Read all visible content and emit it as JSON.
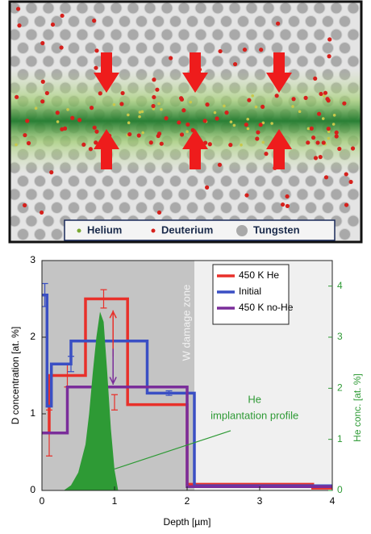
{
  "illustration": {
    "legend": [
      "Helium",
      "Deuterium",
      "Tungsten"
    ]
  },
  "chart_data": {
    "type": "line",
    "drawstyle": "steps-post",
    "x_label": "Depth [µm]",
    "y_label": "D concentration [at. %]",
    "y2_label": "He conc. [at. %]",
    "xlim": [
      0,
      4
    ],
    "xticks": [
      0,
      1,
      2,
      3,
      4
    ],
    "ylim": [
      0,
      3
    ],
    "yticks": [
      0,
      1,
      2,
      3
    ],
    "y2lim": [
      0,
      4.5
    ],
    "y2ticks": [
      0,
      1,
      2,
      3,
      4
    ],
    "y2_color": "#2e9a35",
    "legend": "upper right",
    "zone_label": "W damage zone",
    "annotation_lines": [
      "He",
      "implantation profile"
    ],
    "series": [
      {
        "name": "450 K He",
        "color": "#e8302a",
        "x": [
          0,
          0.1,
          0.6,
          1.18,
          2.0,
          3.73,
          4
        ],
        "values": [
          0.75,
          1.5,
          2.5,
          1.12,
          0.08,
          0.03,
          0.03
        ],
        "error_bars": {
          "x": [
            0.1,
            0.35,
            0.85,
            1.0
          ],
          "values": [
            0.75,
            1.5,
            2.5,
            1.15
          ],
          "errors": [
            0.3,
            0.15,
            0.12,
            0.1
          ]
        }
      },
      {
        "name": "Initial",
        "color": "#3a4fc4",
        "x": [
          0,
          0.07,
          0.13,
          0.4,
          1.45,
          2.1,
          4
        ],
        "values": [
          2.55,
          1.1,
          1.65,
          1.95,
          1.27,
          0.06,
          0.06
        ],
        "error_bars": {
          "x": [
            0.04,
            0.4,
            1.75
          ],
          "values": [
            2.55,
            1.65,
            1.27
          ],
          "errors": [
            0.15,
            0.1,
            0.03
          ]
        }
      },
      {
        "name": "450 K no-He",
        "color": "#7a2d9a",
        "x": [
          0,
          0.35,
          2.0,
          4
        ],
        "values": [
          0.75,
          1.35,
          0.05,
          0.05
        ]
      },
      {
        "type": "area",
        "axis": "y2",
        "color": "#2e9a35",
        "x": [
          0.3,
          0.4,
          0.5,
          0.6,
          0.65,
          0.7,
          0.75,
          0.8,
          0.85,
          0.9,
          0.95,
          1.0,
          1.05
        ],
        "values": [
          0,
          0.1,
          0.35,
          0.9,
          1.5,
          2.3,
          3.0,
          3.5,
          3.3,
          2.3,
          1.2,
          0.4,
          0
        ]
      }
    ]
  }
}
